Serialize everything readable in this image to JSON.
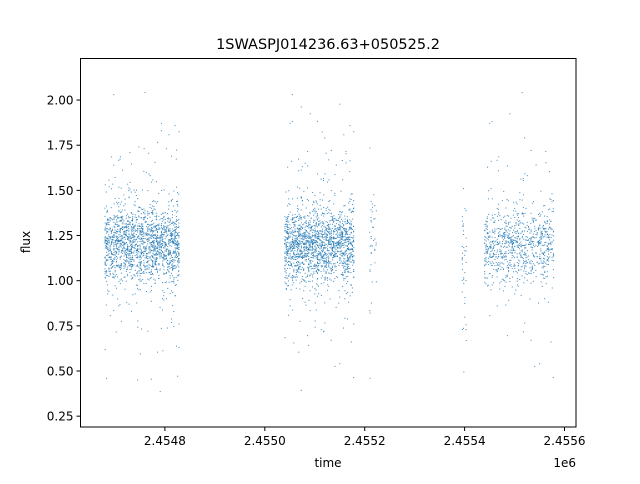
{
  "chart_data": {
    "type": "scatter",
    "title": "1SWASPJ014236.63+050525.2",
    "xlabel": "time",
    "ylabel": "flux",
    "x_offset_label": "1e6",
    "xlim": [
      2454631,
      2455623
    ],
    "ylim": [
      0.19,
      2.23
    ],
    "xticks": [
      2454800,
      2455000,
      2455200,
      2455400,
      2455600
    ],
    "xtick_labels": [
      "2.4548",
      "2.4550",
      "2.4552",
      "2.4554",
      "2.4556"
    ],
    "yticks": [
      0.25,
      0.5,
      0.75,
      1.0,
      1.25,
      1.5,
      1.75,
      2.0
    ],
    "ytick_labels": [
      "0.25",
      "0.50",
      "0.75",
      "1.00",
      "1.25",
      "1.50",
      "1.75",
      "2.00"
    ],
    "grid": false,
    "marker_color": "#1f77b4",
    "point_groups": [
      {
        "time_range": [
          2454680,
          2454830
        ],
        "flux_center": 1.2,
        "flux_spread": 0.1,
        "density": "dense"
      },
      {
        "time_range": [
          2455040,
          2455180
        ],
        "flux_center": 1.2,
        "flux_spread": 0.1,
        "density": "dense"
      },
      {
        "time_range": [
          2455210,
          2455225
        ],
        "flux_center": 1.2,
        "flux_spread": 0.15,
        "density": "sparse"
      },
      {
        "time_range": [
          2455395,
          2455405
        ],
        "flux_center": 1.1,
        "flux_spread": 0.2,
        "density": "sparse"
      },
      {
        "time_range": [
          2455440,
          2455580
        ],
        "flux_center": 1.2,
        "flux_spread": 0.1,
        "density": "medium"
      }
    ]
  }
}
